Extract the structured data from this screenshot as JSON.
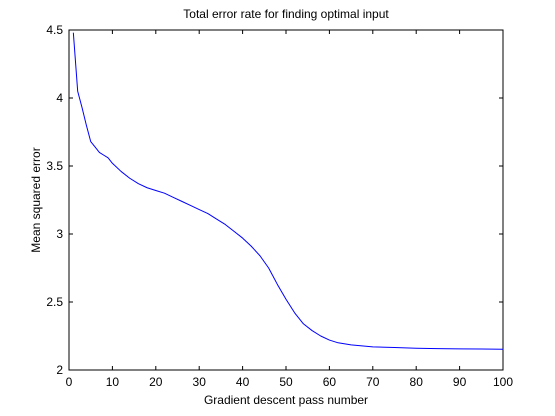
{
  "chart_data": {
    "type": "line",
    "title": "Total error rate for finding optimal input",
    "xlabel": "Gradient descent pass number",
    "ylabel": "Mean squared error",
    "xlim": [
      0,
      100
    ],
    "ylim": [
      2,
      4.5
    ],
    "xticks": [
      0,
      10,
      20,
      30,
      40,
      50,
      60,
      70,
      80,
      90,
      100
    ],
    "yticks": [
      2,
      2.5,
      3,
      3.5,
      4,
      4.5
    ],
    "xtick_labels": [
      "0",
      "10",
      "20",
      "30",
      "40",
      "50",
      "60",
      "70",
      "80",
      "90",
      "100"
    ],
    "ytick_labels": [
      "2",
      "2.5",
      "3",
      "3.5",
      "4",
      "4.5"
    ],
    "grid": false,
    "line_color": "#0000ff",
    "series": [
      {
        "x": [
          1,
          2,
          3,
          4,
          5,
          6,
          7,
          8,
          9,
          10,
          12,
          14,
          16,
          18,
          20,
          22,
          24,
          26,
          28,
          30,
          32,
          34,
          36,
          38,
          40,
          42,
          44,
          46,
          47,
          48,
          50,
          52,
          54,
          56,
          58,
          60,
          62,
          65,
          70,
          75,
          80,
          85,
          90,
          95,
          100
        ],
        "y": [
          4.48,
          4.05,
          3.93,
          3.8,
          3.68,
          3.64,
          3.6,
          3.58,
          3.56,
          3.52,
          3.46,
          3.41,
          3.37,
          3.34,
          3.32,
          3.3,
          3.27,
          3.24,
          3.21,
          3.18,
          3.15,
          3.11,
          3.07,
          3.02,
          2.97,
          2.91,
          2.84,
          2.75,
          2.69,
          2.63,
          2.52,
          2.42,
          2.34,
          2.29,
          2.25,
          2.22,
          2.2,
          2.185,
          2.17,
          2.165,
          2.16,
          2.157,
          2.155,
          2.154,
          2.153
        ]
      }
    ]
  }
}
